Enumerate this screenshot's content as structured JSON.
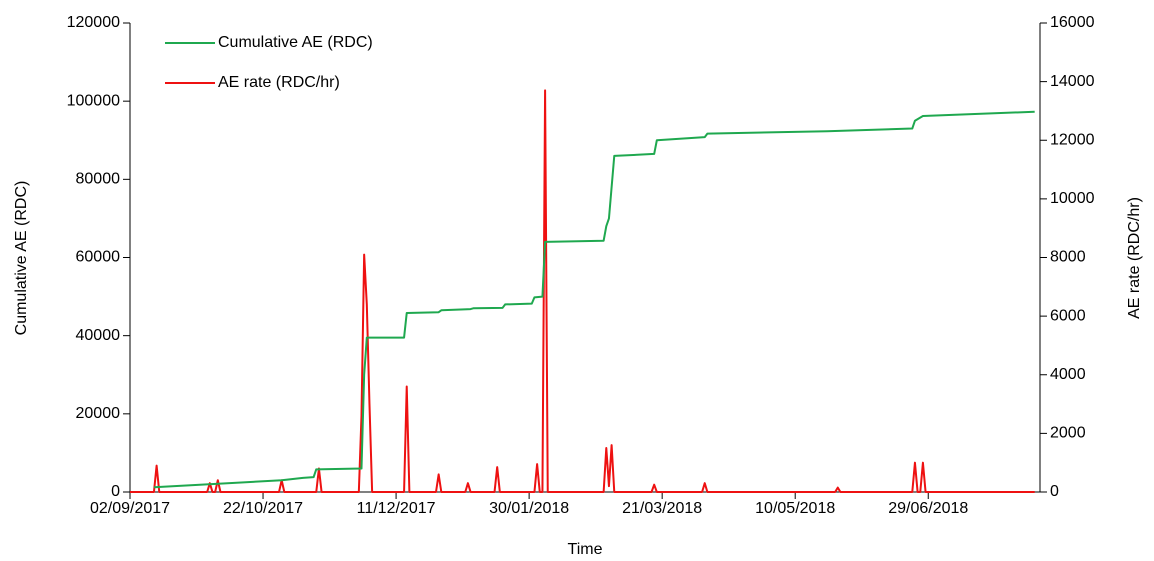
{
  "chart_data": {
    "type": "line",
    "xlabel": "Time",
    "ylabel": "Cumulative AE (RDC)",
    "y2label": "AE rate (RDC/hr)",
    "xlim": [
      "02/09/2017",
      "10/08/2018"
    ],
    "xticks": [
      "02/09/2017",
      "22/10/2017",
      "11/12/2017",
      "30/01/2018",
      "21/03/2018",
      "10/05/2018",
      "29/06/2018"
    ],
    "ylim": [
      0,
      120000
    ],
    "yticks": [
      0,
      20000,
      40000,
      60000,
      80000,
      100000,
      120000
    ],
    "y2lim": [
      0,
      16000
    ],
    "y2ticks": [
      0,
      2000,
      4000,
      6000,
      8000,
      10000,
      12000,
      14000,
      16000
    ],
    "legend": "upper left",
    "series": [
      {
        "name": "Cumulative AE (RDC)",
        "color": "#1fa84f",
        "x": [
          "11/09/2017",
          "29/10/2017",
          "06/11/2017",
          "10/11/2017",
          "11/11/2017",
          "28/11/2017",
          "29/11/2017",
          "30/11/2017",
          "14/12/2017",
          "15/12/2017",
          "27/12/2017",
          "28/12/2017",
          "08/01/2018",
          "09/01/2018",
          "20/01/2018",
          "21/01/2018",
          "31/01/2018",
          "01/02/2018",
          "04/02/2018",
          "05/02/2018",
          "27/02/2018",
          "28/02/2018",
          "01/03/2018",
          "03/03/2018",
          "18/03/2018",
          "19/03/2018",
          "06/04/2018",
          "07/04/2018",
          "22/05/2018",
          "23/06/2018",
          "24/06/2018",
          "27/06/2018",
          "08/08/2018"
        ],
        "values": [
          1200,
          3000,
          3600,
          3800,
          5800,
          6000,
          30000,
          39500,
          39500,
          45800,
          46000,
          46500,
          46800,
          47000,
          47100,
          48000,
          48200,
          49800,
          50000,
          64000,
          64300,
          68000,
          70000,
          86000,
          86500,
          90000,
          90800,
          91700,
          92300,
          93000,
          95000,
          96200,
          97300
        ]
      },
      {
        "name": "AE rate (RDC/hr)",
        "color": "#ee1111",
        "axis": "y2",
        "x": [
          "02/09/2017",
          "11/09/2017",
          "12/09/2017",
          "13/09/2017",
          "01/10/2017",
          "02/10/2017",
          "03/10/2017",
          "04/10/2017",
          "05/10/2017",
          "06/10/2017",
          "28/10/2017",
          "29/10/2017",
          "30/10/2017",
          "11/11/2017",
          "12/11/2017",
          "13/11/2017",
          "27/11/2017",
          "28/11/2017",
          "29/11/2017",
          "30/11/2017",
          "01/12/2017",
          "02/12/2017",
          "14/12/2017",
          "15/12/2017",
          "16/12/2017",
          "26/12/2017",
          "27/12/2017",
          "28/12/2017",
          "06/01/2018",
          "07/01/2018",
          "08/01/2018",
          "17/01/2018",
          "18/01/2018",
          "19/01/2018",
          "01/02/2018",
          "02/02/2018",
          "03/02/2018",
          "04/02/2018",
          "05/02/2018",
          "06/02/2018",
          "27/02/2018",
          "28/02/2018",
          "01/03/2018",
          "02/03/2018",
          "03/03/2018",
          "17/03/2018",
          "18/03/2018",
          "19/03/2018",
          "05/04/2018",
          "06/04/2018",
          "07/04/2018",
          "25/05/2018",
          "26/05/2018",
          "27/05/2018",
          "23/06/2018",
          "24/06/2018",
          "25/06/2018",
          "26/06/2018",
          "27/06/2018",
          "28/06/2018",
          "08/08/2018"
        ],
        "values": [
          0,
          0,
          900,
          0,
          0,
          300,
          0,
          0,
          400,
          0,
          0,
          400,
          0,
          0,
          800,
          0,
          0,
          2600,
          8100,
          6400,
          3000,
          0,
          0,
          3600,
          0,
          0,
          600,
          0,
          0,
          300,
          0,
          0,
          850,
          0,
          0,
          950,
          0,
          0,
          13700,
          0,
          0,
          1500,
          200,
          1600,
          0,
          0,
          250,
          0,
          0,
          300,
          0,
          0,
          150,
          0,
          0,
          1000,
          0,
          0,
          1000,
          0,
          0
        ]
      }
    ]
  }
}
